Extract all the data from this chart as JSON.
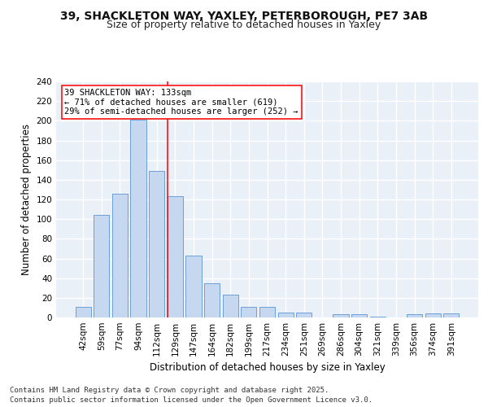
{
  "title_line1": "39, SHACKLETON WAY, YAXLEY, PETERBOROUGH, PE7 3AB",
  "title_line2": "Size of property relative to detached houses in Yaxley",
  "xlabel": "Distribution of detached houses by size in Yaxley",
  "ylabel": "Number of detached properties",
  "footer": "Contains HM Land Registry data © Crown copyright and database right 2025.\nContains public sector information licensed under the Open Government Licence v3.0.",
  "categories": [
    "42sqm",
    "59sqm",
    "77sqm",
    "94sqm",
    "112sqm",
    "129sqm",
    "147sqm",
    "164sqm",
    "182sqm",
    "199sqm",
    "217sqm",
    "234sqm",
    "251sqm",
    "269sqm",
    "286sqm",
    "304sqm",
    "321sqm",
    "339sqm",
    "356sqm",
    "374sqm",
    "391sqm"
  ],
  "values": [
    11,
    104,
    126,
    201,
    149,
    123,
    63,
    35,
    23,
    11,
    11,
    5,
    5,
    0,
    3,
    3,
    1,
    0,
    3,
    4,
    4
  ],
  "bar_color": "#c5d8f0",
  "bar_edge_color": "#6a9fd8",
  "annotation_box_text": "39 SHACKLETON WAY: 133sqm\n← 71% of detached houses are smaller (619)\n29% of semi-detached houses are larger (252) →",
  "redline_x": 4.58,
  "ylim": [
    0,
    240
  ],
  "yticks": [
    0,
    20,
    40,
    60,
    80,
    100,
    120,
    140,
    160,
    180,
    200,
    220,
    240
  ],
  "bg_color": "#eaf0f8",
  "grid_color": "#ffffff",
  "title_fontsize": 10,
  "subtitle_fontsize": 9,
  "axis_label_fontsize": 8.5,
  "tick_fontsize": 7.5,
  "footer_fontsize": 6.5,
  "ann_fontsize": 7.5
}
